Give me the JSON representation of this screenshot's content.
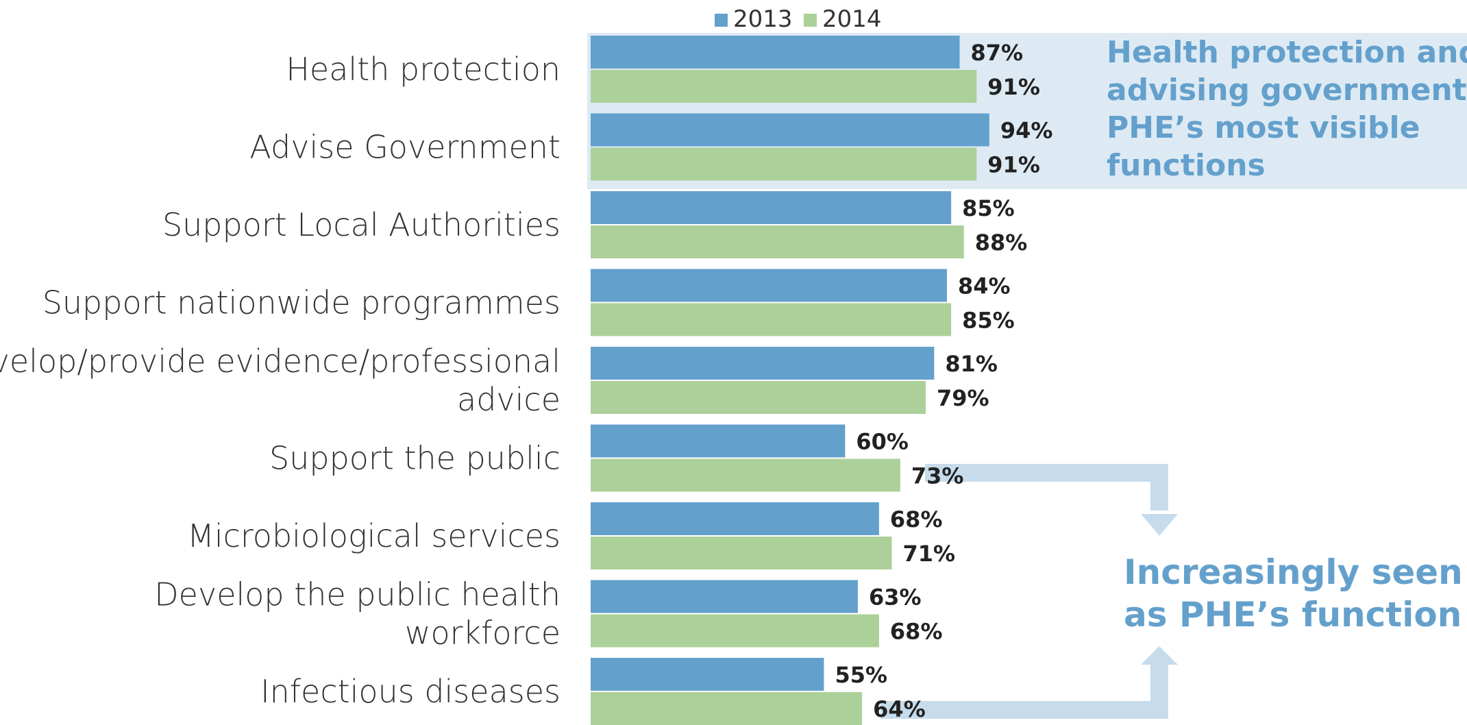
{
  "chart_data": {
    "type": "bar",
    "orientation": "horizontal",
    "categories": [
      "Health protection",
      "Advise Government",
      "Support Local Authorities",
      "Support nationwide programmes",
      "Develop/provide evidence/professional advice",
      "Support the public",
      "Microbiological services",
      "Develop the public health workforce",
      "Infectious diseases"
    ],
    "series": [
      {
        "name": "2013",
        "values": [
          87,
          94,
          85,
          84,
          81,
          60,
          68,
          63,
          55
        ],
        "labels": [
          "87%",
          "94%",
          "85%",
          "84%",
          "81%",
          "60%",
          "68%",
          "63%",
          "55%"
        ]
      },
      {
        "name": "2014",
        "values": [
          91,
          91,
          88,
          85,
          79,
          73,
          71,
          68,
          64
        ],
        "labels": [
          "91%",
          "91%",
          "88%",
          "85%",
          "79%",
          "73%",
          "71%",
          "68%",
          "64%"
        ]
      }
    ],
    "xlim": [
      0,
      100
    ],
    "unit": "%",
    "grid": false,
    "legend": "top",
    "colors": {
      "2013": "#64a0cc",
      "2014": "#acd09a"
    },
    "annotations": [
      {
        "text_lines": [
          "Health protection and",
          "advising government:",
          "PHE’s most visible",
          "functions"
        ],
        "color": "#64a0cc",
        "background": "#ddeaf4"
      },
      {
        "text_lines": [
          "Increasingly seen",
          "as PHE’s function"
        ],
        "color": "#64a0cc",
        "arrow_color": "#c6dcec"
      }
    ]
  }
}
